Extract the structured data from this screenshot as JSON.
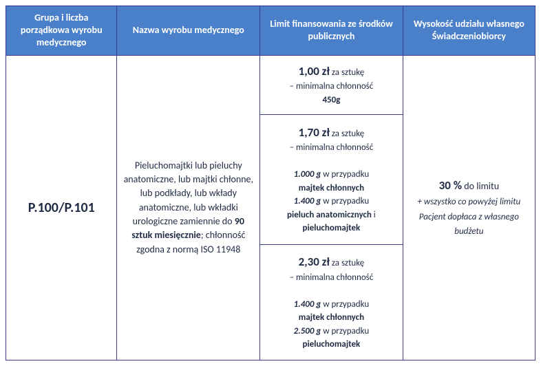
{
  "headers": {
    "h1": "Grupa i liczba porządkowa wyrobu medycznego",
    "h2": "Nazwa wyrobu medycznego",
    "h3": "Limit finansowania ze środków publicznych",
    "h4": "Wysokość udziału własnego Świadczeniobiorcy"
  },
  "code": "P.100/P.101",
  "desc": {
    "line1": "Pieluchomajtki lub pieluchy anatomiczne, lub majtki chłonne, lub podkłady, lub wkłady anatomiczne, lub wkładki urologiczne zamiennie do ",
    "qty": "90 sztuk miesięcznie",
    "line2": "; chłonność zgodna z normą ISO 11948"
  },
  "limits": {
    "r1": {
      "price": "1,00 zł",
      "per": " za sztukę",
      "sub": "– minimalna chłonność ",
      "val": "450g"
    },
    "r2": {
      "price": "1,70 zł",
      "per": " za sztukę",
      "sub": "– minimalna chłonność",
      "g1": "1.000 g",
      "t1": " w przypadku ",
      "p1": "majtek chłonnych",
      "g2": "1.400 g",
      "t2": " w przypadku ",
      "p2": "pieluch anatomicznych",
      "and": " i ",
      "p3": "pieluchomajtek"
    },
    "r3": {
      "price": "2,30 zł",
      "per": " za sztukę",
      "sub": "– minimalna chłonność",
      "g1": "1.400 g",
      "t1": " w przypadku ",
      "p1": "majtek chłonnych",
      "g2": "2.500 g",
      "t2": " w przypadku ",
      "p2": "pieluchomajtek"
    }
  },
  "share": {
    "pct": "30 %",
    "to": " do limitu",
    "note": "+ wszystko co powyżej limitu Pacjent dopłaca z własnego budżetu"
  }
}
